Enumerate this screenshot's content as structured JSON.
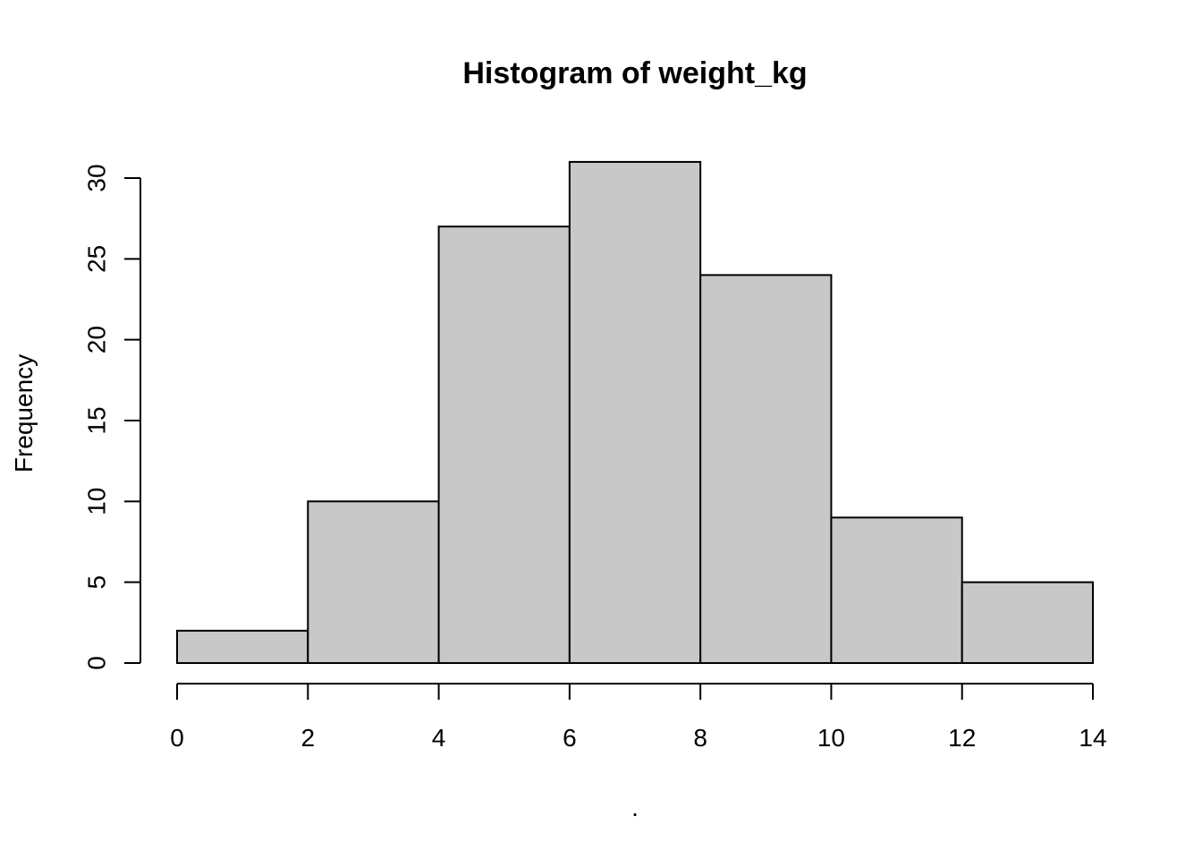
{
  "chart_data": {
    "type": "bar",
    "title": "Histogram of weight_kg",
    "xlabel": ".",
    "ylabel": "Frequency",
    "bins": [
      {
        "start": 0,
        "end": 2,
        "count": 2
      },
      {
        "start": 2,
        "end": 4,
        "count": 10
      },
      {
        "start": 4,
        "end": 6,
        "count": 27
      },
      {
        "start": 6,
        "end": 8,
        "count": 31
      },
      {
        "start": 8,
        "end": 10,
        "count": 24
      },
      {
        "start": 10,
        "end": 12,
        "count": 9
      },
      {
        "start": 12,
        "end": 14,
        "count": 5
      }
    ],
    "xlim": [
      0,
      14
    ],
    "ylim": [
      0,
      30
    ],
    "x_ticks": [
      0,
      2,
      4,
      6,
      8,
      10,
      12,
      14
    ],
    "y_ticks": [
      0,
      5,
      10,
      15,
      20,
      25,
      30
    ],
    "grid": false,
    "legend": "none",
    "bar_fill": "#c8c8c8",
    "bar_stroke": "#000000"
  }
}
